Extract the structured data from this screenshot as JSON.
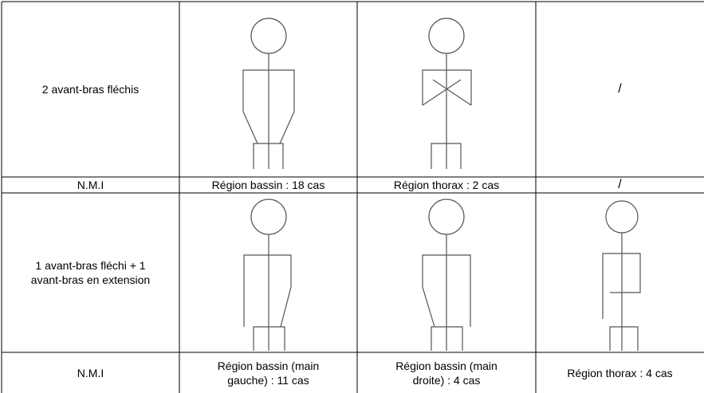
{
  "table": {
    "rows": [
      {
        "label": "2 avant-bras fléchis",
        "last": "/"
      },
      [
        "N.M.I",
        "Région bassin : 18 cas",
        "Région thorax : 2 cas",
        "/"
      ],
      {
        "label": "1 avant-bras fléchi + 1 avant-bras en extension"
      },
      [
        "N.M.I",
        "Région bassin (main gauche) : 11 cas",
        "Région bassin (main droite) : 4 cas",
        "Région thorax : 4 cas"
      ]
    ]
  }
}
